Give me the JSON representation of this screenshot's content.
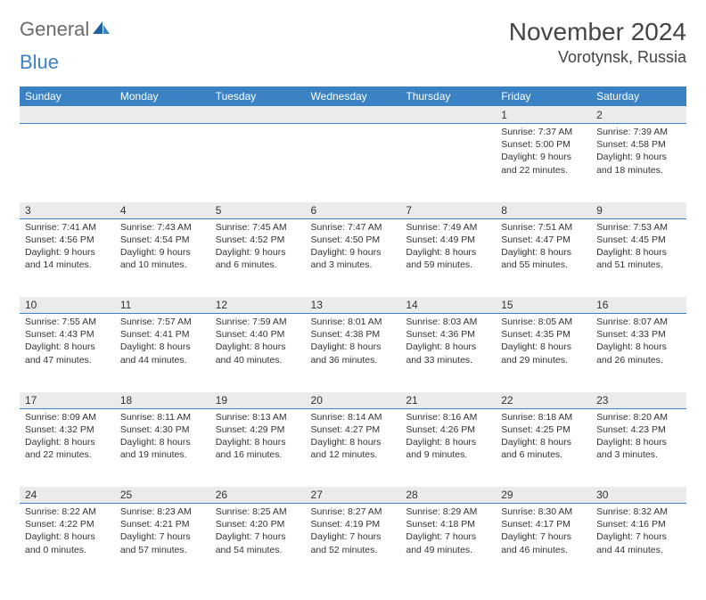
{
  "brand": {
    "part1": "General",
    "part2": "Blue"
  },
  "title": "November 2024",
  "location": "Vorotynsk, Russia",
  "colors": {
    "header_bg": "#3b82c4",
    "header_text": "#ffffff",
    "daynum_bg": "#ebebeb",
    "border": "#3b82c4",
    "text": "#333333",
    "logo_gray": "#6b6b6b",
    "logo_blue": "#3b82c4",
    "page_bg": "#ffffff"
  },
  "weekdays": [
    "Sunday",
    "Monday",
    "Tuesday",
    "Wednesday",
    "Thursday",
    "Friday",
    "Saturday"
  ],
  "weeks": [
    [
      null,
      null,
      null,
      null,
      null,
      {
        "n": "1",
        "sr": "Sunrise: 7:37 AM",
        "ss": "Sunset: 5:00 PM",
        "d1": "Daylight: 9 hours",
        "d2": "and 22 minutes."
      },
      {
        "n": "2",
        "sr": "Sunrise: 7:39 AM",
        "ss": "Sunset: 4:58 PM",
        "d1": "Daylight: 9 hours",
        "d2": "and 18 minutes."
      }
    ],
    [
      {
        "n": "3",
        "sr": "Sunrise: 7:41 AM",
        "ss": "Sunset: 4:56 PM",
        "d1": "Daylight: 9 hours",
        "d2": "and 14 minutes."
      },
      {
        "n": "4",
        "sr": "Sunrise: 7:43 AM",
        "ss": "Sunset: 4:54 PM",
        "d1": "Daylight: 9 hours",
        "d2": "and 10 minutes."
      },
      {
        "n": "5",
        "sr": "Sunrise: 7:45 AM",
        "ss": "Sunset: 4:52 PM",
        "d1": "Daylight: 9 hours",
        "d2": "and 6 minutes."
      },
      {
        "n": "6",
        "sr": "Sunrise: 7:47 AM",
        "ss": "Sunset: 4:50 PM",
        "d1": "Daylight: 9 hours",
        "d2": "and 3 minutes."
      },
      {
        "n": "7",
        "sr": "Sunrise: 7:49 AM",
        "ss": "Sunset: 4:49 PM",
        "d1": "Daylight: 8 hours",
        "d2": "and 59 minutes."
      },
      {
        "n": "8",
        "sr": "Sunrise: 7:51 AM",
        "ss": "Sunset: 4:47 PM",
        "d1": "Daylight: 8 hours",
        "d2": "and 55 minutes."
      },
      {
        "n": "9",
        "sr": "Sunrise: 7:53 AM",
        "ss": "Sunset: 4:45 PM",
        "d1": "Daylight: 8 hours",
        "d2": "and 51 minutes."
      }
    ],
    [
      {
        "n": "10",
        "sr": "Sunrise: 7:55 AM",
        "ss": "Sunset: 4:43 PM",
        "d1": "Daylight: 8 hours",
        "d2": "and 47 minutes."
      },
      {
        "n": "11",
        "sr": "Sunrise: 7:57 AM",
        "ss": "Sunset: 4:41 PM",
        "d1": "Daylight: 8 hours",
        "d2": "and 44 minutes."
      },
      {
        "n": "12",
        "sr": "Sunrise: 7:59 AM",
        "ss": "Sunset: 4:40 PM",
        "d1": "Daylight: 8 hours",
        "d2": "and 40 minutes."
      },
      {
        "n": "13",
        "sr": "Sunrise: 8:01 AM",
        "ss": "Sunset: 4:38 PM",
        "d1": "Daylight: 8 hours",
        "d2": "and 36 minutes."
      },
      {
        "n": "14",
        "sr": "Sunrise: 8:03 AM",
        "ss": "Sunset: 4:36 PM",
        "d1": "Daylight: 8 hours",
        "d2": "and 33 minutes."
      },
      {
        "n": "15",
        "sr": "Sunrise: 8:05 AM",
        "ss": "Sunset: 4:35 PM",
        "d1": "Daylight: 8 hours",
        "d2": "and 29 minutes."
      },
      {
        "n": "16",
        "sr": "Sunrise: 8:07 AM",
        "ss": "Sunset: 4:33 PM",
        "d1": "Daylight: 8 hours",
        "d2": "and 26 minutes."
      }
    ],
    [
      {
        "n": "17",
        "sr": "Sunrise: 8:09 AM",
        "ss": "Sunset: 4:32 PM",
        "d1": "Daylight: 8 hours",
        "d2": "and 22 minutes."
      },
      {
        "n": "18",
        "sr": "Sunrise: 8:11 AM",
        "ss": "Sunset: 4:30 PM",
        "d1": "Daylight: 8 hours",
        "d2": "and 19 minutes."
      },
      {
        "n": "19",
        "sr": "Sunrise: 8:13 AM",
        "ss": "Sunset: 4:29 PM",
        "d1": "Daylight: 8 hours",
        "d2": "and 16 minutes."
      },
      {
        "n": "20",
        "sr": "Sunrise: 8:14 AM",
        "ss": "Sunset: 4:27 PM",
        "d1": "Daylight: 8 hours",
        "d2": "and 12 minutes."
      },
      {
        "n": "21",
        "sr": "Sunrise: 8:16 AM",
        "ss": "Sunset: 4:26 PM",
        "d1": "Daylight: 8 hours",
        "d2": "and 9 minutes."
      },
      {
        "n": "22",
        "sr": "Sunrise: 8:18 AM",
        "ss": "Sunset: 4:25 PM",
        "d1": "Daylight: 8 hours",
        "d2": "and 6 minutes."
      },
      {
        "n": "23",
        "sr": "Sunrise: 8:20 AM",
        "ss": "Sunset: 4:23 PM",
        "d1": "Daylight: 8 hours",
        "d2": "and 3 minutes."
      }
    ],
    [
      {
        "n": "24",
        "sr": "Sunrise: 8:22 AM",
        "ss": "Sunset: 4:22 PM",
        "d1": "Daylight: 8 hours",
        "d2": "and 0 minutes."
      },
      {
        "n": "25",
        "sr": "Sunrise: 8:23 AM",
        "ss": "Sunset: 4:21 PM",
        "d1": "Daylight: 7 hours",
        "d2": "and 57 minutes."
      },
      {
        "n": "26",
        "sr": "Sunrise: 8:25 AM",
        "ss": "Sunset: 4:20 PM",
        "d1": "Daylight: 7 hours",
        "d2": "and 54 minutes."
      },
      {
        "n": "27",
        "sr": "Sunrise: 8:27 AM",
        "ss": "Sunset: 4:19 PM",
        "d1": "Daylight: 7 hours",
        "d2": "and 52 minutes."
      },
      {
        "n": "28",
        "sr": "Sunrise: 8:29 AM",
        "ss": "Sunset: 4:18 PM",
        "d1": "Daylight: 7 hours",
        "d2": "and 49 minutes."
      },
      {
        "n": "29",
        "sr": "Sunrise: 8:30 AM",
        "ss": "Sunset: 4:17 PM",
        "d1": "Daylight: 7 hours",
        "d2": "and 46 minutes."
      },
      {
        "n": "30",
        "sr": "Sunrise: 8:32 AM",
        "ss": "Sunset: 4:16 PM",
        "d1": "Daylight: 7 hours",
        "d2": "and 44 minutes."
      }
    ]
  ]
}
